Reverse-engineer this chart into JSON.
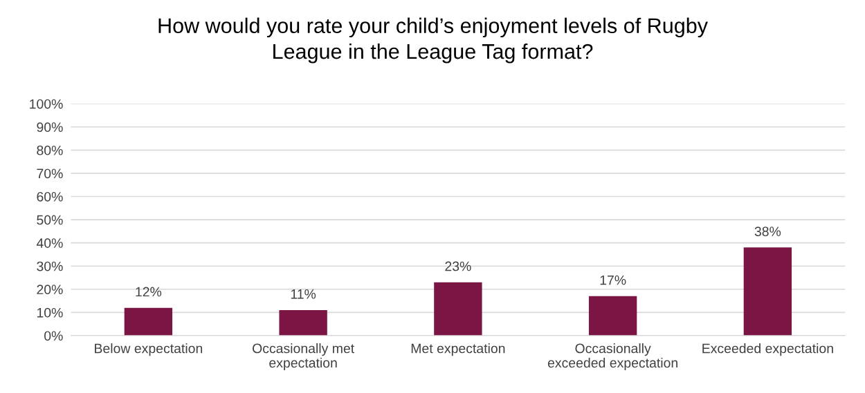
{
  "chart_data": {
    "type": "bar",
    "title": "How would you rate your child’s enjoyment levels of Rugby\nLeague in the League Tag format?",
    "categories": [
      "Below expectation",
      "Occasionally met\nexpectation",
      "Met expectation",
      "Occasionally\nexceeded expectation",
      "Exceeded expectation"
    ],
    "values": [
      12,
      11,
      23,
      17,
      38
    ],
    "value_labels": [
      "12%",
      "11%",
      "23%",
      "17%",
      "38%"
    ],
    "color": "#7b1543",
    "ylim": [
      0,
      100
    ],
    "yticks": [
      {
        "value": 0,
        "label": "0%"
      },
      {
        "value": 10,
        "label": "10%"
      },
      {
        "value": 20,
        "label": "20%"
      },
      {
        "value": 30,
        "label": "30%"
      },
      {
        "value": 40,
        "label": "40%"
      },
      {
        "value": 50,
        "label": "50%"
      },
      {
        "value": 60,
        "label": "60%"
      },
      {
        "value": 70,
        "label": "70%"
      },
      {
        "value": 80,
        "label": "80%"
      },
      {
        "value": 90,
        "label": "90%"
      },
      {
        "value": 100,
        "label": "100%"
      }
    ],
    "grid": "y",
    "legend": false
  }
}
